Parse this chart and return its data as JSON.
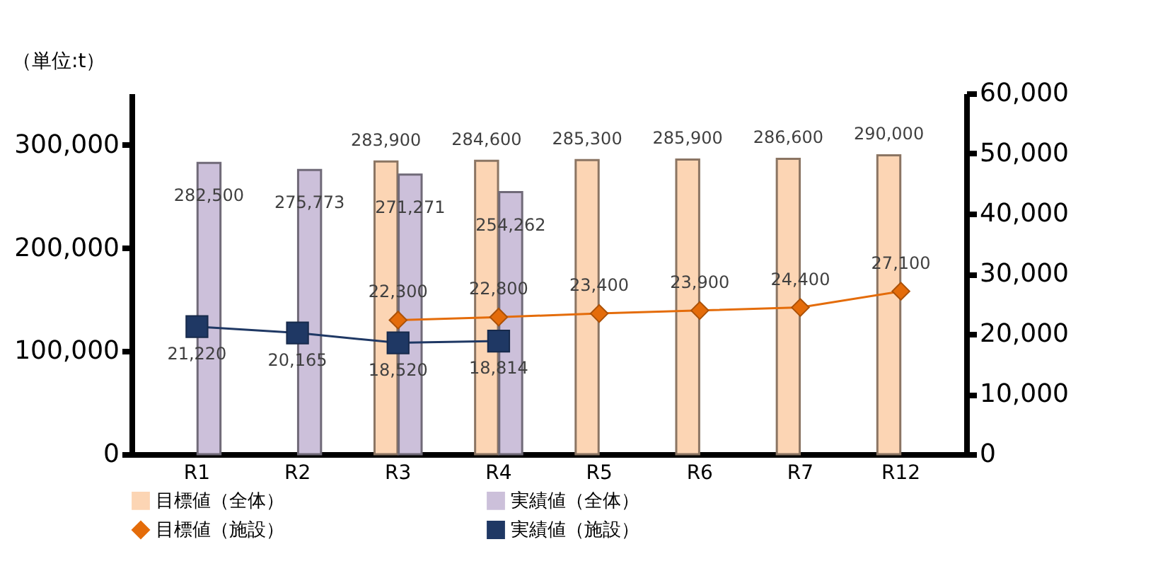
{
  "chart_data": {
    "type": "bar",
    "ylabel": "（単位:t）",
    "categories": [
      "R1",
      "R2",
      "R3",
      "R4",
      "R5",
      "R6",
      "R7",
      "R12"
    ],
    "series": [
      {
        "name": "目標値（全体）",
        "color": "#fcd5b4",
        "values": [
          null,
          null,
          283900,
          284600,
          285300,
          285900,
          286600,
          290000
        ],
        "value_labels": [
          null,
          null,
          "283,900",
          "284,600",
          "285,300",
          "285,900",
          "286,600",
          "290,000"
        ]
      },
      {
        "name": "実績値（全体）",
        "color": "#ccc0da",
        "values": [
          282500,
          275773,
          271271,
          254262,
          null,
          null,
          null,
          null
        ],
        "value_labels": [
          "282,500",
          "275,773",
          "271,271",
          "254,262",
          null,
          null,
          null,
          null
        ]
      },
      {
        "name": "目標値（施設）",
        "type": "line",
        "axis": "y2",
        "marker": "diamond",
        "color": "#e46c0a",
        "values": [
          null,
          null,
          22300,
          22800,
          23400,
          23900,
          24400,
          27100
        ],
        "value_labels": [
          null,
          null,
          "22,300",
          "22,800",
          "23,400",
          "23,900",
          "24,400",
          "27,100"
        ]
      },
      {
        "name": "実績値（施設）",
        "type": "line",
        "axis": "y2",
        "marker": "square",
        "color": "#1f3864",
        "values": [
          21220,
          20165,
          18520,
          18814,
          null,
          null,
          null,
          null
        ],
        "value_labels": [
          "21,220",
          "20,165",
          "18,520",
          "18,814",
          null,
          null,
          null,
          null
        ]
      }
    ],
    "ylim": [
      0,
      350000
    ],
    "yticks": [
      {
        "value": 0,
        "label": "0"
      },
      {
        "value": 100000,
        "label": "100,000"
      },
      {
        "value": 200000,
        "label": "200,000"
      },
      {
        "value": 300000,
        "label": "300,000"
      }
    ],
    "y2lim": [
      0,
      60000
    ],
    "y2ticks": [
      {
        "value": 0,
        "label": "0"
      },
      {
        "value": 10000,
        "label": "10,000"
      },
      {
        "value": 20000,
        "label": "20,000"
      },
      {
        "value": 30000,
        "label": "30,000"
      },
      {
        "value": 40000,
        "label": "40,000"
      },
      {
        "value": 50000,
        "label": "50,000"
      },
      {
        "value": 60000,
        "label": "60,000"
      }
    ],
    "grid": false,
    "legend": "bottom"
  }
}
